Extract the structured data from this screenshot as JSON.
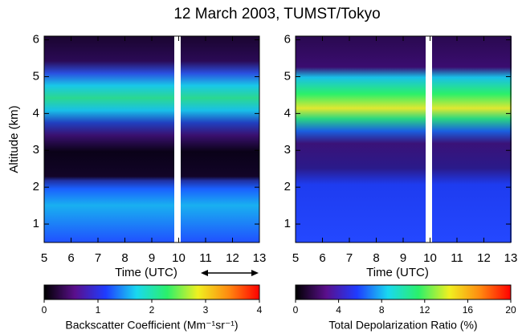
{
  "title": "12 March 2003, TUMST/Tokyo",
  "chart_data": [
    {
      "type": "heatmap",
      "x_label": "Time (UTC)",
      "y_label": "Altitude (km)",
      "xlim": [
        5,
        13
      ],
      "xticks": [
        5,
        6,
        7,
        8,
        9,
        10,
        11,
        12,
        13
      ],
      "ylim": [
        0.5,
        6.1
      ],
      "yticks": [
        1,
        2,
        3,
        4,
        5,
        6
      ],
      "colormap": [
        "#000000",
        "#5a0f8c",
        "#1f3cff",
        "#19d8f0",
        "#2bf06a",
        "#f0f020",
        "#ff8a10",
        "#ff0000"
      ],
      "colorbar": {
        "label": "Backscatter Coefficient (Mm⁻¹sr⁻¹)",
        "lim": [
          0,
          4
        ],
        "ticks": [
          0,
          1,
          2,
          3,
          4
        ]
      }
    },
    {
      "type": "heatmap",
      "x_label": "Time (UTC)",
      "xlim": [
        5,
        13
      ],
      "xticks": [
        5,
        6,
        7,
        8,
        9,
        10,
        11,
        12,
        13
      ],
      "ylim": [
        0.5,
        6.1
      ],
      "yticks": [
        1,
        2,
        3,
        4,
        5,
        6
      ],
      "colormap": [
        "#000000",
        "#5a0f8c",
        "#1f3cff",
        "#19d8f0",
        "#2bf06a",
        "#f0f020",
        "#ff8a10",
        "#ff0000"
      ],
      "colorbar": {
        "label": "Total Depolarization Ratio (%)",
        "lim": [
          0,
          20
        ],
        "ticks": [
          0,
          4,
          8,
          12,
          16,
          20
        ]
      }
    }
  ]
}
